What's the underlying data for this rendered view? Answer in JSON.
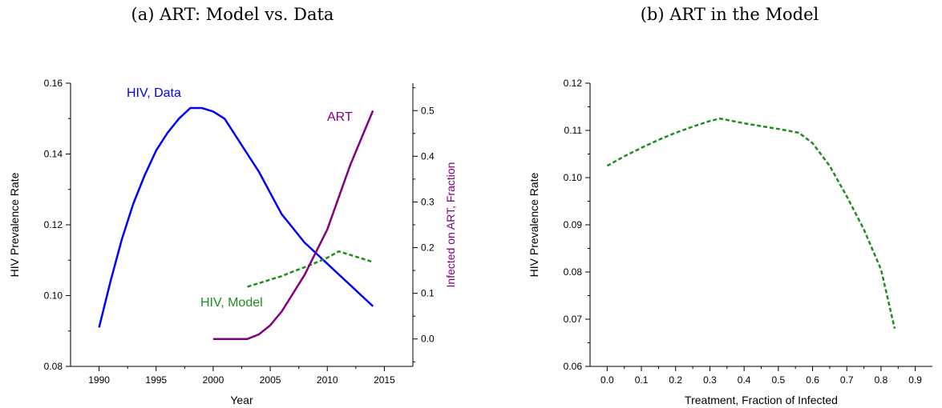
{
  "chart_data": [
    {
      "type": "line",
      "title": "(a) ART: Model vs. Data",
      "xlabel": "Year",
      "ylabel": "HIV Prevalence Rate",
      "y2label": "Infected on ART, Fraction",
      "xlim": [
        1987.5,
        2017.5
      ],
      "ylim": [
        0.08,
        0.16
      ],
      "y2lim": [
        -0.06,
        0.56
      ],
      "xticks": [
        "1990",
        "1995",
        "2000",
        "2005",
        "2010",
        "2015"
      ],
      "yticks": [
        "0.08",
        "0.10",
        "0.12",
        "0.14",
        "0.16"
      ],
      "y2ticks": [
        "0.0",
        "0.1",
        "0.2",
        "0.3",
        "0.4",
        "0.5"
      ],
      "series": [
        {
          "name": "HIV, Data",
          "axis": "left",
          "color": "#0000ff",
          "dash": "solid",
          "x": [
            1990,
            1991,
            1992,
            1993,
            1994,
            1995,
            1996,
            1997,
            1998,
            1999,
            2000,
            2001,
            2002,
            2003,
            2004,
            2005,
            2006,
            2007,
            2008,
            2009,
            2010,
            2011,
            2012,
            2013,
            2014
          ],
          "y": [
            0.091,
            0.104,
            0.116,
            0.126,
            0.134,
            0.141,
            0.146,
            0.15,
            0.153,
            0.153,
            0.152,
            0.15,
            0.145,
            0.14,
            0.135,
            0.129,
            0.123,
            0.119,
            0.115,
            0.112,
            0.109,
            0.106,
            0.103,
            0.1,
            0.097
          ]
        },
        {
          "name": "HIV, Model",
          "axis": "left",
          "color": "#1e8c1e",
          "dash": "dashed",
          "x": [
            2003,
            2004,
            2005,
            2006,
            2007,
            2008,
            2009,
            2010,
            2011,
            2012,
            2013,
            2014
          ],
          "y": [
            0.1025,
            0.1035,
            0.1045,
            0.1055,
            0.1068,
            0.108,
            0.1093,
            0.1107,
            0.1125,
            0.1115,
            0.1105,
            0.1095
          ]
        },
        {
          "name": "ART",
          "axis": "right",
          "color": "#800080",
          "dash": "solid",
          "x": [
            2000,
            2001,
            2002,
            2003,
            2004,
            2005,
            2006,
            2007,
            2008,
            2009,
            2010,
            2011,
            2012,
            2013,
            2014
          ],
          "y": [
            0.0,
            0.0,
            0.0,
            0.0,
            0.01,
            0.03,
            0.06,
            0.1,
            0.14,
            0.19,
            0.24,
            0.31,
            0.38,
            0.44,
            0.5
          ]
        }
      ]
    },
    {
      "type": "line",
      "title": "(b) ART in the Model",
      "xlabel": "Treatment, Fraction of Infected",
      "ylabel": "HIV Prevalence Rate",
      "xlim": [
        -0.05,
        0.95
      ],
      "ylim": [
        0.06,
        0.12
      ],
      "xticks": [
        "0.0",
        "0.1",
        "0.2",
        "0.3",
        "0.4",
        "0.5",
        "0.6",
        "0.7",
        "0.8",
        "0.9"
      ],
      "yticks": [
        "0.06",
        "0.07",
        "0.08",
        "0.09",
        "0.10",
        "0.11",
        "0.12"
      ],
      "series": [
        {
          "color": "#1e8c1e",
          "dash": "dashed",
          "x": [
            0.0,
            0.05,
            0.1,
            0.15,
            0.2,
            0.25,
            0.3,
            0.33,
            0.4,
            0.5,
            0.56,
            0.6,
            0.65,
            0.7,
            0.75,
            0.8,
            0.84
          ],
          "y": [
            0.1025,
            0.1045,
            0.1063,
            0.108,
            0.1095,
            0.1108,
            0.112,
            0.1125,
            0.1115,
            0.1103,
            0.1095,
            0.1073,
            0.1025,
            0.096,
            0.089,
            0.0805,
            0.068
          ]
        }
      ]
    }
  ]
}
